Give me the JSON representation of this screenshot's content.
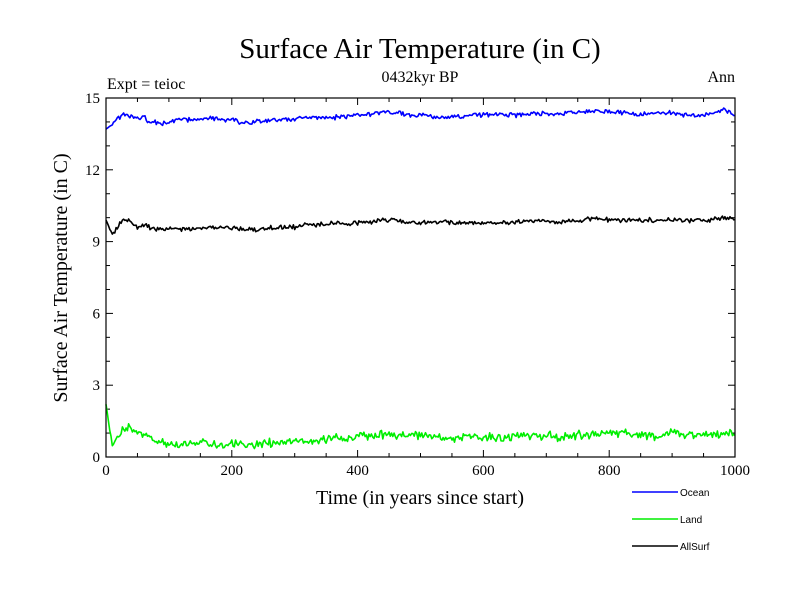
{
  "chart_data": {
    "type": "line",
    "title": "Surface Air Temperature (in C)",
    "subtitle": "0432kyr BP",
    "left_note": "Expt = teioc",
    "right_note": "Ann",
    "xlabel": "Time (in years since start)",
    "ylabel": "Surface Air Temperature (in C)",
    "xlim": [
      0,
      1000
    ],
    "ylim": [
      0,
      15
    ],
    "x_ticks": [
      0,
      200,
      400,
      600,
      800,
      1000
    ],
    "y_ticks": [
      0,
      3,
      6,
      9,
      12,
      15
    ],
    "legend_position": "bottom-right",
    "x": [
      0,
      10,
      20,
      30,
      40,
      50,
      60,
      70,
      80,
      90,
      100,
      120,
      140,
      160,
      180,
      200,
      220,
      240,
      260,
      280,
      300,
      320,
      340,
      360,
      380,
      400,
      420,
      440,
      460,
      480,
      500,
      520,
      540,
      560,
      580,
      600,
      620,
      640,
      660,
      680,
      700,
      720,
      740,
      760,
      780,
      800,
      820,
      840,
      860,
      880,
      900,
      920,
      940,
      960,
      980,
      1000
    ],
    "series": [
      {
        "name": "Ocean",
        "color": "#0000ff",
        "values": [
          13.7,
          13.9,
          14.2,
          14.3,
          14.2,
          14.1,
          14.2,
          14.0,
          14.0,
          13.9,
          14.0,
          14.1,
          14.1,
          14.2,
          14.1,
          14.1,
          13.9,
          14.0,
          14.1,
          14.1,
          14.1,
          14.2,
          14.2,
          14.2,
          14.2,
          14.3,
          14.3,
          14.4,
          14.4,
          14.3,
          14.3,
          14.2,
          14.2,
          14.2,
          14.3,
          14.3,
          14.3,
          14.3,
          14.3,
          14.4,
          14.3,
          14.3,
          14.4,
          14.4,
          14.5,
          14.4,
          14.4,
          14.3,
          14.3,
          14.4,
          14.4,
          14.3,
          14.3,
          14.3,
          14.5,
          14.3
        ]
      },
      {
        "name": "Land",
        "color": "#00ee00",
        "values": [
          2.2,
          0.4,
          0.9,
          1.3,
          1.2,
          1.0,
          0.9,
          0.8,
          0.7,
          0.6,
          0.6,
          0.5,
          0.6,
          0.6,
          0.5,
          0.6,
          0.5,
          0.5,
          0.6,
          0.6,
          0.6,
          0.7,
          0.7,
          0.8,
          0.8,
          0.9,
          0.9,
          0.9,
          0.9,
          0.9,
          0.9,
          0.9,
          0.8,
          0.8,
          0.9,
          0.8,
          0.8,
          0.8,
          0.9,
          0.9,
          0.9,
          0.8,
          0.9,
          0.9,
          1.0,
          1.0,
          1.0,
          0.9,
          0.9,
          0.9,
          1.0,
          0.9,
          0.9,
          0.9,
          1.0,
          1.0
        ]
      },
      {
        "name": "AllSurf",
        "color": "#000000",
        "values": [
          9.9,
          9.3,
          9.7,
          9.9,
          9.8,
          9.6,
          9.7,
          9.6,
          9.5,
          9.5,
          9.6,
          9.5,
          9.5,
          9.6,
          9.6,
          9.6,
          9.5,
          9.5,
          9.6,
          9.6,
          9.6,
          9.7,
          9.7,
          9.8,
          9.7,
          9.8,
          9.8,
          9.9,
          9.9,
          9.8,
          9.8,
          9.8,
          9.8,
          9.8,
          9.8,
          9.8,
          9.8,
          9.8,
          9.8,
          9.9,
          9.9,
          9.8,
          9.9,
          9.9,
          10.0,
          9.9,
          9.9,
          9.9,
          9.9,
          9.9,
          9.9,
          9.9,
          9.9,
          9.9,
          10.0,
          9.9
        ]
      }
    ]
  }
}
